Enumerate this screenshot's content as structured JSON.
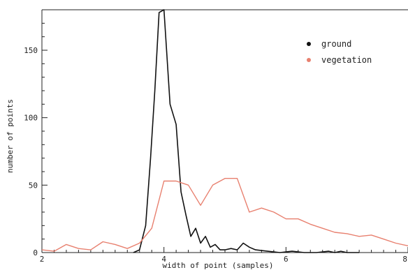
{
  "chart_data": {
    "type": "line",
    "title": "",
    "xlabel": "width of point (samples)",
    "ylabel": "number of points",
    "xlim": [
      2,
      8
    ],
    "ylim": [
      0,
      180
    ],
    "xticks": [
      2,
      4,
      6,
      8
    ],
    "yticks": [
      0,
      50,
      100,
      150
    ],
    "grid": false,
    "legend_position": "top-right",
    "series": [
      {
        "name": "ground",
        "color": "#111111",
        "x": [
          3.5,
          3.6,
          3.7,
          3.78,
          3.85,
          3.92,
          4.0,
          4.1,
          4.2,
          4.28,
          4.36,
          4.44,
          4.52,
          4.6,
          4.68,
          4.76,
          4.84,
          4.92,
          5.0,
          5.1,
          5.2,
          5.3,
          5.4,
          5.5,
          5.7,
          5.9,
          6.1,
          6.3,
          6.5,
          6.7,
          6.8,
          6.9,
          7.0,
          7.2
        ],
        "y": [
          0,
          2,
          20,
          70,
          120,
          178,
          180,
          110,
          95,
          45,
          28,
          12,
          18,
          7,
          12,
          4,
          6,
          2,
          2,
          3,
          2,
          7,
          4,
          2,
          1,
          0,
          1,
          0,
          0,
          1,
          0,
          1,
          0,
          0
        ]
      },
      {
        "name": "vegetation",
        "color": "#e8806f",
        "x": [
          2.0,
          2.2,
          2.4,
          2.6,
          2.8,
          3.0,
          3.2,
          3.4,
          3.6,
          3.8,
          4.0,
          4.2,
          4.4,
          4.6,
          4.8,
          5.0,
          5.2,
          5.4,
          5.6,
          5.8,
          6.0,
          6.2,
          6.4,
          6.6,
          6.8,
          7.0,
          7.2,
          7.4,
          7.6,
          7.8,
          8.0
        ],
        "y": [
          2,
          1,
          6,
          3,
          2,
          8,
          6,
          3,
          7,
          18,
          53,
          53,
          50,
          35,
          50,
          55,
          55,
          30,
          33,
          30,
          25,
          25,
          21,
          18,
          15,
          14,
          12,
          13,
          10,
          7,
          5
        ]
      }
    ]
  }
}
